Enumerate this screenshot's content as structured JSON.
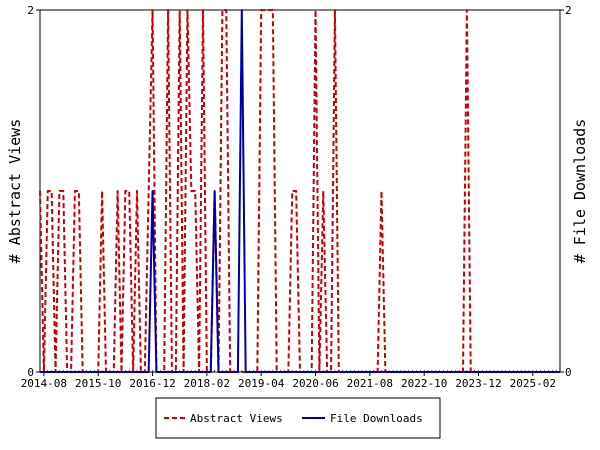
{
  "chart_data": {
    "type": "line",
    "title": "",
    "ylabel_left": "# Abstract Views",
    "ylabel_right": "# File Downloads",
    "x_tick_labels": [
      "2014-08",
      "2015-10",
      "2016-12",
      "2018-02",
      "2019-04",
      "2020-06",
      "2021-08",
      "2022-10",
      "2023-12",
      "2025-02"
    ],
    "x_start": "2014-07",
    "x_end": "2025-09",
    "ylim_left": [
      0,
      2
    ],
    "ylim_right": [
      0,
      2
    ],
    "y_ticks_left": [
      "0",
      "2"
    ],
    "y_ticks_right": [
      "0",
      "2"
    ],
    "grid": false,
    "legend_position": "bottom",
    "series": [
      {
        "name": "Abstract Views",
        "color": "#cc0000",
        "style": "dashed",
        "axis": "left",
        "points": [
          [
            "2014-07",
            1
          ],
          [
            "2014-08",
            0
          ],
          [
            "2014-09",
            1
          ],
          [
            "2014-10",
            1
          ],
          [
            "2014-11",
            0
          ],
          [
            "2014-12",
            1
          ],
          [
            "2015-01",
            1
          ],
          [
            "2015-02",
            0
          ],
          [
            "2015-03",
            0
          ],
          [
            "2015-04",
            1
          ],
          [
            "2015-05",
            1
          ],
          [
            "2015-06",
            0
          ],
          [
            "2015-07",
            0
          ],
          [
            "2015-08",
            0
          ],
          [
            "2015-09",
            0
          ],
          [
            "2015-10",
            0
          ],
          [
            "2015-11",
            1
          ],
          [
            "2015-12",
            0
          ],
          [
            "2016-01",
            0
          ],
          [
            "2016-02",
            0
          ],
          [
            "2016-03",
            1
          ],
          [
            "2016-04",
            0
          ],
          [
            "2016-05",
            1
          ],
          [
            "2016-06",
            1
          ],
          [
            "2016-07",
            0
          ],
          [
            "2016-08",
            1
          ],
          [
            "2016-09",
            0
          ],
          [
            "2016-10",
            0
          ],
          [
            "2016-11",
            1
          ],
          [
            "2016-12",
            2
          ],
          [
            "2017-01",
            0
          ],
          [
            "2017-02",
            0
          ],
          [
            "2017-03",
            0
          ],
          [
            "2017-04",
            2
          ],
          [
            "2017-05",
            0
          ],
          [
            "2017-06",
            0
          ],
          [
            "2017-07",
            2
          ],
          [
            "2017-08",
            0
          ],
          [
            "2017-09",
            2
          ],
          [
            "2017-10",
            1
          ],
          [
            "2017-11",
            1
          ],
          [
            "2017-12",
            0
          ],
          [
            "2018-01",
            2
          ],
          [
            "2018-02",
            0
          ],
          [
            "2018-03",
            0
          ],
          [
            "2018-04",
            1
          ],
          [
            "2018-05",
            0
          ],
          [
            "2018-06",
            2
          ],
          [
            "2018-07",
            2
          ],
          [
            "2018-08",
            0
          ],
          [
            "2018-09",
            0
          ],
          [
            "2018-10",
            0
          ],
          [
            "2018-11",
            0
          ],
          [
            "2018-12",
            0
          ],
          [
            "2019-01",
            0
          ],
          [
            "2019-02",
            0
          ],
          [
            "2019-03",
            0
          ],
          [
            "2019-04",
            2
          ],
          [
            "2019-05",
            2
          ],
          [
            "2019-06",
            2
          ],
          [
            "2019-07",
            2
          ],
          [
            "2019-08",
            0
          ],
          [
            "2019-09",
            0
          ],
          [
            "2019-10",
            0
          ],
          [
            "2019-11",
            0
          ],
          [
            "2019-12",
            1
          ],
          [
            "2020-01",
            1
          ],
          [
            "2020-02",
            0
          ],
          [
            "2020-03",
            0
          ],
          [
            "2020-04",
            0
          ],
          [
            "2020-05",
            0
          ],
          [
            "2020-06",
            2
          ],
          [
            "2020-07",
            0
          ],
          [
            "2020-08",
            1
          ],
          [
            "2020-09",
            0
          ],
          [
            "2020-10",
            0
          ],
          [
            "2020-11",
            2
          ],
          [
            "2020-12",
            0
          ],
          [
            "2021-01",
            0
          ],
          [
            "2021-02",
            0
          ],
          [
            "2021-03",
            0
          ],
          [
            "2021-04",
            0
          ],
          [
            "2021-05",
            0
          ],
          [
            "2021-06",
            0
          ],
          [
            "2021-07",
            0
          ],
          [
            "2021-08",
            0
          ],
          [
            "2021-09",
            0
          ],
          [
            "2021-10",
            0
          ],
          [
            "2021-11",
            1
          ],
          [
            "2021-12",
            0
          ],
          [
            "2022-01",
            0
          ],
          [
            "2022-02",
            0
          ],
          [
            "2022-03",
            0
          ],
          [
            "2022-04",
            0
          ],
          [
            "2022-05",
            0
          ],
          [
            "2022-06",
            0
          ],
          [
            "2022-07",
            0
          ],
          [
            "2022-08",
            0
          ],
          [
            "2022-09",
            0
          ],
          [
            "2022-10",
            0
          ],
          [
            "2022-11",
            0
          ],
          [
            "2022-12",
            0
          ],
          [
            "2023-01",
            0
          ],
          [
            "2023-02",
            0
          ],
          [
            "2023-03",
            0
          ],
          [
            "2023-04",
            0
          ],
          [
            "2023-05",
            0
          ],
          [
            "2023-06",
            0
          ],
          [
            "2023-07",
            0
          ],
          [
            "2023-08",
            0
          ],
          [
            "2023-09",
            2
          ],
          [
            "2023-10",
            0
          ],
          [
            "2023-11",
            0
          ],
          [
            "2023-12",
            0
          ],
          [
            "2024-01",
            0
          ],
          [
            "2024-02",
            0
          ],
          [
            "2024-03",
            0
          ],
          [
            "2024-04",
            0
          ],
          [
            "2024-05",
            0
          ],
          [
            "2024-06",
            0
          ],
          [
            "2024-07",
            0
          ],
          [
            "2024-08",
            0
          ],
          [
            "2024-09",
            0
          ],
          [
            "2024-10",
            0
          ],
          [
            "2024-11",
            0
          ],
          [
            "2024-12",
            0
          ],
          [
            "2025-01",
            0
          ],
          [
            "2025-02",
            0
          ],
          [
            "2025-03",
            0
          ],
          [
            "2025-04",
            0
          ],
          [
            "2025-05",
            0
          ],
          [
            "2025-06",
            0
          ],
          [
            "2025-07",
            0
          ],
          [
            "2025-08",
            0
          ],
          [
            "2025-09",
            0
          ]
        ]
      },
      {
        "name": "File Downloads",
        "color": "#0000aa",
        "style": "solid",
        "axis": "right",
        "points": [
          [
            "2014-07",
            0
          ],
          [
            "2016-11",
            0
          ],
          [
            "2016-12",
            1
          ],
          [
            "2017-01",
            0
          ],
          [
            "2018-03",
            0
          ],
          [
            "2018-04",
            1
          ],
          [
            "2018-05",
            0
          ],
          [
            "2018-10",
            0
          ],
          [
            "2018-11",
            2
          ],
          [
            "2018-12",
            0
          ],
          [
            "2025-09",
            0
          ]
        ]
      }
    ]
  }
}
